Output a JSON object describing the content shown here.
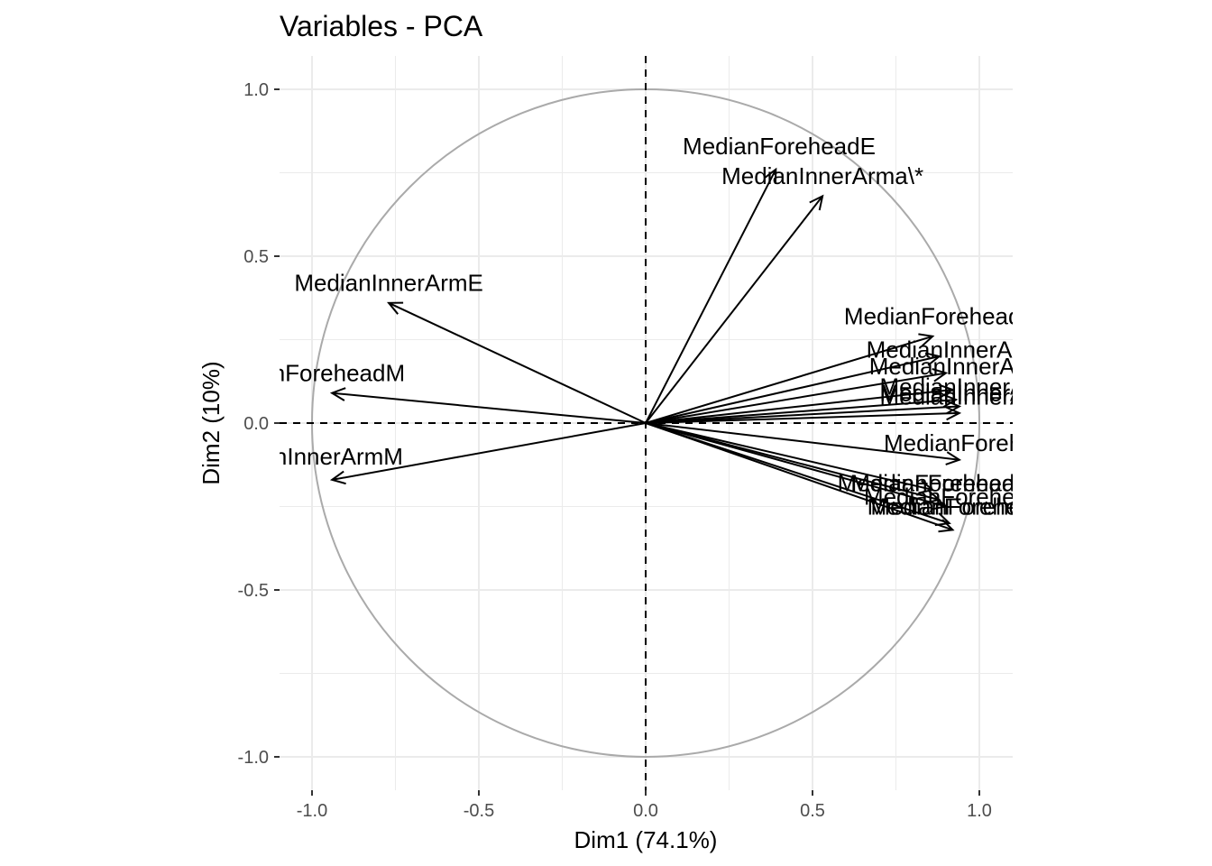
{
  "chart_data": {
    "type": "pca-variables",
    "title": "Variables - PCA",
    "xlabel": "Dim1 (74.1%)",
    "ylabel": "Dim2 (10%)",
    "xlim": [
      -1.1,
      1.1
    ],
    "ylim": [
      -1.1,
      1.1
    ],
    "x_ticks": [
      -1.0,
      -0.5,
      0.0,
      0.5,
      1.0
    ],
    "y_ticks": [
      -1.0,
      -0.5,
      0.0,
      0.5,
      1.0
    ],
    "x_tick_labels": [
      "-1.0",
      "-0.5",
      "0.0",
      "0.5",
      "1.0"
    ],
    "y_tick_labels": [
      "-1.0",
      "-0.5",
      "0.0",
      "0.5",
      "1.0"
    ],
    "grid": true,
    "correlation_circle": true,
    "colors": {
      "circle": "#aaaaaa",
      "grid": "#ebebeb",
      "arrow": "#000000",
      "tick_text": "#4d4d4d"
    },
    "variables": [
      {
        "name": "MedianForeheadE",
        "x": 0.39,
        "y": 0.76,
        "label": "MedianForeheadE",
        "lx": 0.4,
        "ly": 0.83
      },
      {
        "name": "MedianInnerArma\\*",
        "x": 0.53,
        "y": 0.68,
        "label": "MedianInnerArma\\*",
        "lx": 0.53,
        "ly": 0.74
      },
      {
        "name": "MedianInnerArmE",
        "x": -0.77,
        "y": 0.36,
        "label": "MedianInnerArmE",
        "lx": -0.77,
        "ly": 0.42
      },
      {
        "name": "MedianForeheadM",
        "x": -0.94,
        "y": 0.09,
        "label": "anForeheadM",
        "lx": -0.94,
        "ly": 0.15
      },
      {
        "name": "MedianInnerArmM",
        "x": -0.94,
        "y": -0.17,
        "label": "anInnerArmM",
        "lx": -0.94,
        "ly": -0.1
      },
      {
        "name": "MedianForehead",
        "x": 0.86,
        "y": 0.26,
        "label": "MedianForehead",
        "lx": 0.86,
        "ly": 0.32
      },
      {
        "name": "MedianInnerA",
        "x": 0.88,
        "y": 0.2,
        "label": "MedianInnerA",
        "lx": 0.88,
        "ly": 0.22
      },
      {
        "name": "MedianInnerAr",
        "x": 0.9,
        "y": 0.15,
        "label": "MedianInnerAr",
        "lx": 0.9,
        "ly": 0.17
      },
      {
        "name": "MedianInnerA_2",
        "x": 0.92,
        "y": 0.1,
        "label": "MedianInnerA",
        "lx": 0.92,
        "ly": 0.11
      },
      {
        "name": "MedianInnerA_3",
        "x": 0.93,
        "y": 0.07,
        "label": "MedianInnerA",
        "lx": 0.92,
        "ly": 0.09
      },
      {
        "name": "MedianInnerA_4",
        "x": 0.94,
        "y": 0.05,
        "label": "MedianInnerA",
        "lx": 0.92,
        "ly": 0.08
      },
      {
        "name": "MedianInnerA_5",
        "x": 0.94,
        "y": 0.03,
        "label": "MedianInnerA",
        "lx": 0.92,
        "ly": 0.09
      },
      {
        "name": "MedianForehe",
        "x": 0.94,
        "y": -0.11,
        "label": "MedianForehe",
        "lx": 0.94,
        "ly": -0.06
      },
      {
        "name": "MedianForeheadn",
        "x": 0.86,
        "y": -0.2,
        "label": "MedianForeheadn",
        "lx": 0.86,
        "ly": -0.18
      },
      {
        "name": "MedianForehead_2",
        "x": 0.88,
        "y": -0.23,
        "label": "MedianForehead",
        "lx": 0.88,
        "ly": -0.18
      },
      {
        "name": "MedianForehea",
        "x": 0.9,
        "y": -0.25,
        "label": "MedianForehea",
        "lx": 0.9,
        "ly": -0.22
      },
      {
        "name": "MedianForehea_2",
        "x": 0.91,
        "y": -0.3,
        "label": "MedianForehea",
        "lx": 0.91,
        "ly": -0.25
      },
      {
        "name": "MedianForehea_3",
        "x": 0.92,
        "y": -0.32,
        "label": "MedianForehea",
        "lx": 0.92,
        "ly": -0.25
      }
    ]
  }
}
